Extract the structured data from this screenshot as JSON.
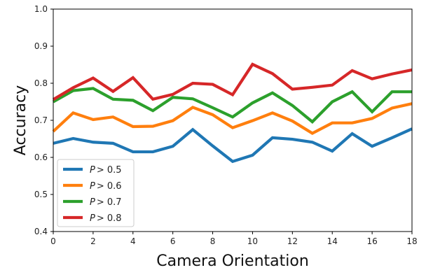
{
  "chart_data": {
    "type": "line",
    "title": "",
    "xlabel": "Camera Orientation",
    "ylabel": "Accuracy",
    "xlim": [
      0,
      18
    ],
    "ylim": [
      0.4,
      1.0
    ],
    "x_ticks": [
      0,
      2,
      4,
      6,
      8,
      10,
      12,
      14,
      16,
      18
    ],
    "y_ticks": [
      "0.4",
      "0.5",
      "0.6",
      "0.7",
      "0.8",
      "0.9",
      "1.0"
    ],
    "grid": false,
    "legend_position": "lower-left",
    "x": [
      0,
      1,
      2,
      3,
      4,
      5,
      6,
      7,
      8,
      9,
      10,
      11,
      12,
      13,
      14,
      15,
      16,
      17,
      18
    ],
    "series": [
      {
        "name_prefix": "P",
        "name_suffix": "> 0.5",
        "color": "#1f77b4",
        "values": [
          0.638,
          0.651,
          0.641,
          0.638,
          0.615,
          0.615,
          0.63,
          0.675,
          0.631,
          0.589,
          0.606,
          0.653,
          0.649,
          0.641,
          0.617,
          0.664,
          0.63,
          0.653,
          0.677
        ]
      },
      {
        "name_prefix": "P",
        "name_suffix": "> 0.6",
        "color": "#ff7f0e",
        "values": [
          0.67,
          0.72,
          0.702,
          0.709,
          0.683,
          0.684,
          0.699,
          0.735,
          0.715,
          0.68,
          0.699,
          0.72,
          0.698,
          0.665,
          0.693,
          0.693,
          0.705,
          0.733,
          0.745
        ]
      },
      {
        "name_prefix": "P",
        "name_suffix": "> 0.7",
        "color": "#2ca02c",
        "values": [
          0.75,
          0.78,
          0.786,
          0.757,
          0.754,
          0.726,
          0.762,
          0.758,
          0.734,
          0.709,
          0.747,
          0.774,
          0.74,
          0.696,
          0.75,
          0.777,
          0.723,
          0.777,
          0.777
        ]
      },
      {
        "name_prefix": "P",
        "name_suffix": "> 0.8",
        "color": "#d62728",
        "values": [
          0.756,
          0.788,
          0.814,
          0.778,
          0.815,
          0.757,
          0.77,
          0.8,
          0.797,
          0.769,
          0.851,
          0.826,
          0.784,
          0.789,
          0.795,
          0.834,
          0.812,
          0.825,
          0.836
        ]
      }
    ]
  }
}
